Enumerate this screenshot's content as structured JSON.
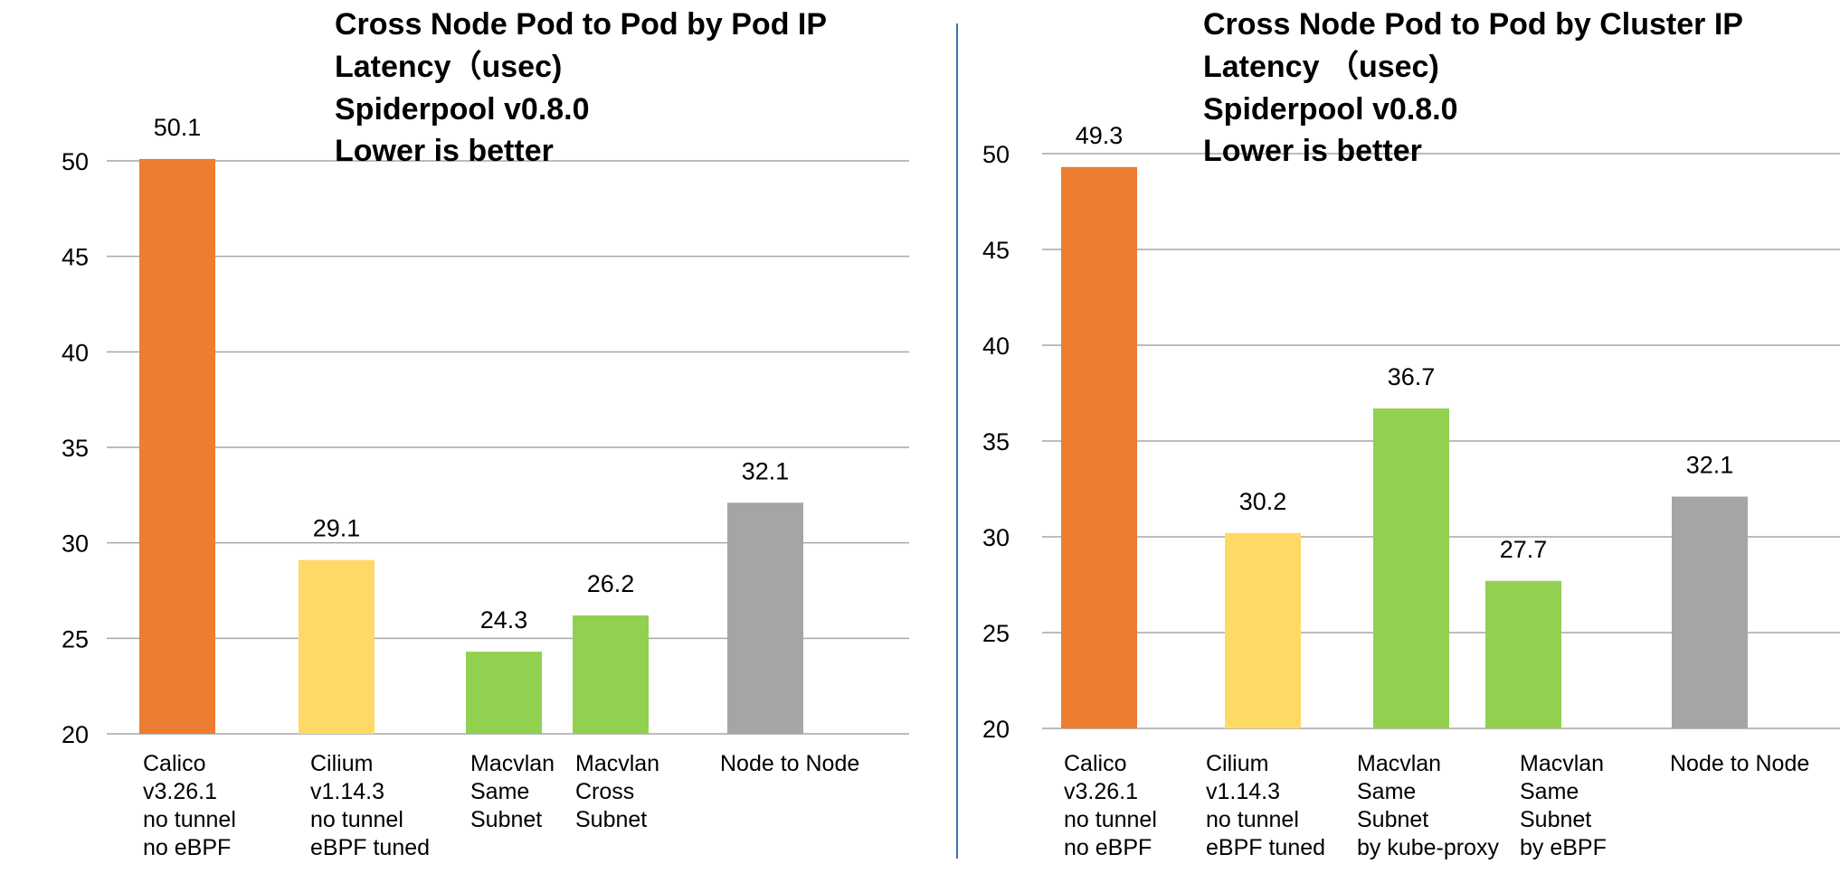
{
  "chart_data": [
    {
      "type": "bar",
      "title_lines": [
        "Cross Node Pod to Pod by Pod IP",
        "Latency（usec)",
        "Spiderpool v0.8.0",
        "Lower is better"
      ],
      "xlabel": "",
      "ylabel": "",
      "ylim": [
        20,
        50
      ],
      "yticks": [
        "20",
        "25",
        "30",
        "35",
        "40",
        "45",
        "50"
      ],
      "grid": true,
      "categories": [
        [
          "Calico",
          "v3.26.1",
          "no tunnel",
          "no eBPF"
        ],
        [
          "Cilium",
          "v1.14.3",
          "no tunnel",
          "eBPF tuned"
        ],
        [
          "Macvlan",
          "Same",
          "Subnet"
        ],
        [
          "Macvlan",
          " Cross",
          "Subnet"
        ],
        [
          "Node to Node"
        ]
      ],
      "values": [
        50.1,
        29.1,
        24.3,
        26.2,
        32.1
      ],
      "value_labels": [
        "50.1",
        "29.1",
        "24.3",
        "26.2",
        "32.1"
      ],
      "colors": [
        "#ed7d31",
        "#ffd966",
        "#92d050",
        "#92d050",
        "#a5a5a5"
      ]
    },
    {
      "type": "bar",
      "title_lines": [
        "Cross Node Pod to Pod by Cluster IP",
        "Latency （usec)",
        "Spiderpool v0.8.0",
        "Lower is better"
      ],
      "xlabel": "",
      "ylabel": "",
      "ylim": [
        20,
        50
      ],
      "yticks": [
        "20",
        "25",
        "30",
        "35",
        "40",
        "45",
        "50"
      ],
      "grid": true,
      "categories": [
        [
          "Calico",
          "v3.26.1",
          "no tunnel",
          "no eBPF"
        ],
        [
          "Cilium",
          "v1.14.3",
          "no tunnel",
          "eBPF tuned"
        ],
        [
          "Macvlan",
          "Same",
          "Subnet",
          "by kube-proxy"
        ],
        [
          "Macvlan",
          "Same",
          "Subnet",
          "by eBPF"
        ],
        [
          "Node to Node"
        ]
      ],
      "values": [
        49.3,
        30.2,
        36.7,
        27.7,
        32.1
      ],
      "value_labels": [
        "49.3",
        "30.2",
        "36.7",
        "27.7",
        "32.1"
      ],
      "colors": [
        "#ed7d31",
        "#ffd966",
        "#92d050",
        "#92d050",
        "#a5a5a5"
      ]
    }
  ]
}
